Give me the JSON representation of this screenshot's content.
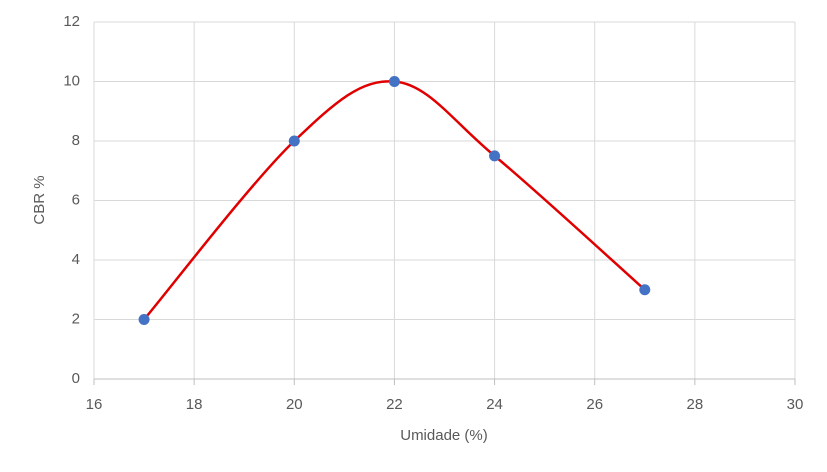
{
  "chart_data": {
    "type": "scatter",
    "x": [
      17,
      20,
      22,
      24,
      27
    ],
    "values": [
      2,
      8,
      10,
      7.5,
      3
    ],
    "marker_color": "#4472c4",
    "line_color": "#e00000",
    "smooth": true,
    "xlim": [
      16,
      30
    ],
    "xticks": [
      16,
      18,
      20,
      22,
      24,
      26,
      28,
      30
    ],
    "ylim": [
      0,
      12
    ],
    "yticks": [
      0,
      2,
      4,
      6,
      8,
      10,
      12
    ],
    "grid": true,
    "x_label": "Umidade (%)",
    "y_label": "CBR %"
  }
}
